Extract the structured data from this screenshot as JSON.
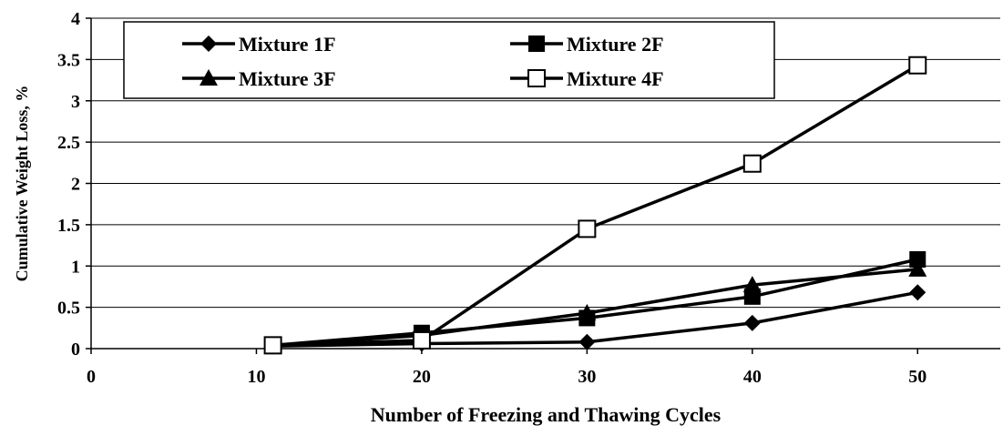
{
  "chart_data": {
    "type": "line",
    "xlabel": "Number of  Freezing and Thawing Cycles",
    "ylabel": "Cumulative Weight Loss, %",
    "xlim": [
      0,
      55
    ],
    "ylim": [
      0,
      4
    ],
    "xticks": [
      0,
      10,
      20,
      30,
      40,
      50
    ],
    "yticks": [
      0,
      0.5,
      1,
      1.5,
      2,
      2.5,
      3,
      3.5,
      4
    ],
    "grid": "horizontal",
    "legend_position": "top",
    "series": [
      {
        "name": "Mixture 1F",
        "marker": "diamond",
        "x": [
          11,
          20,
          30,
          40,
          50
        ],
        "values": [
          0.03,
          0.06,
          0.08,
          0.31,
          0.68
        ]
      },
      {
        "name": "Mixture 2F",
        "marker": "square",
        "x": [
          11,
          20,
          30,
          40,
          50
        ],
        "values": [
          0.04,
          0.19,
          0.37,
          0.63,
          1.08
        ]
      },
      {
        "name": "Mixture 3F",
        "marker": "triangle",
        "x": [
          11,
          20,
          30,
          40,
          50
        ],
        "values": [
          0.04,
          0.16,
          0.43,
          0.77,
          0.96
        ]
      },
      {
        "name": "Mixture 4F",
        "marker": "open-square",
        "x": [
          11,
          20,
          30,
          40,
          50
        ],
        "values": [
          0.04,
          0.1,
          1.45,
          2.24,
          3.43
        ]
      }
    ],
    "colors": {
      "line": "#000000",
      "grid": "#000000",
      "background": "#ffffff"
    }
  }
}
